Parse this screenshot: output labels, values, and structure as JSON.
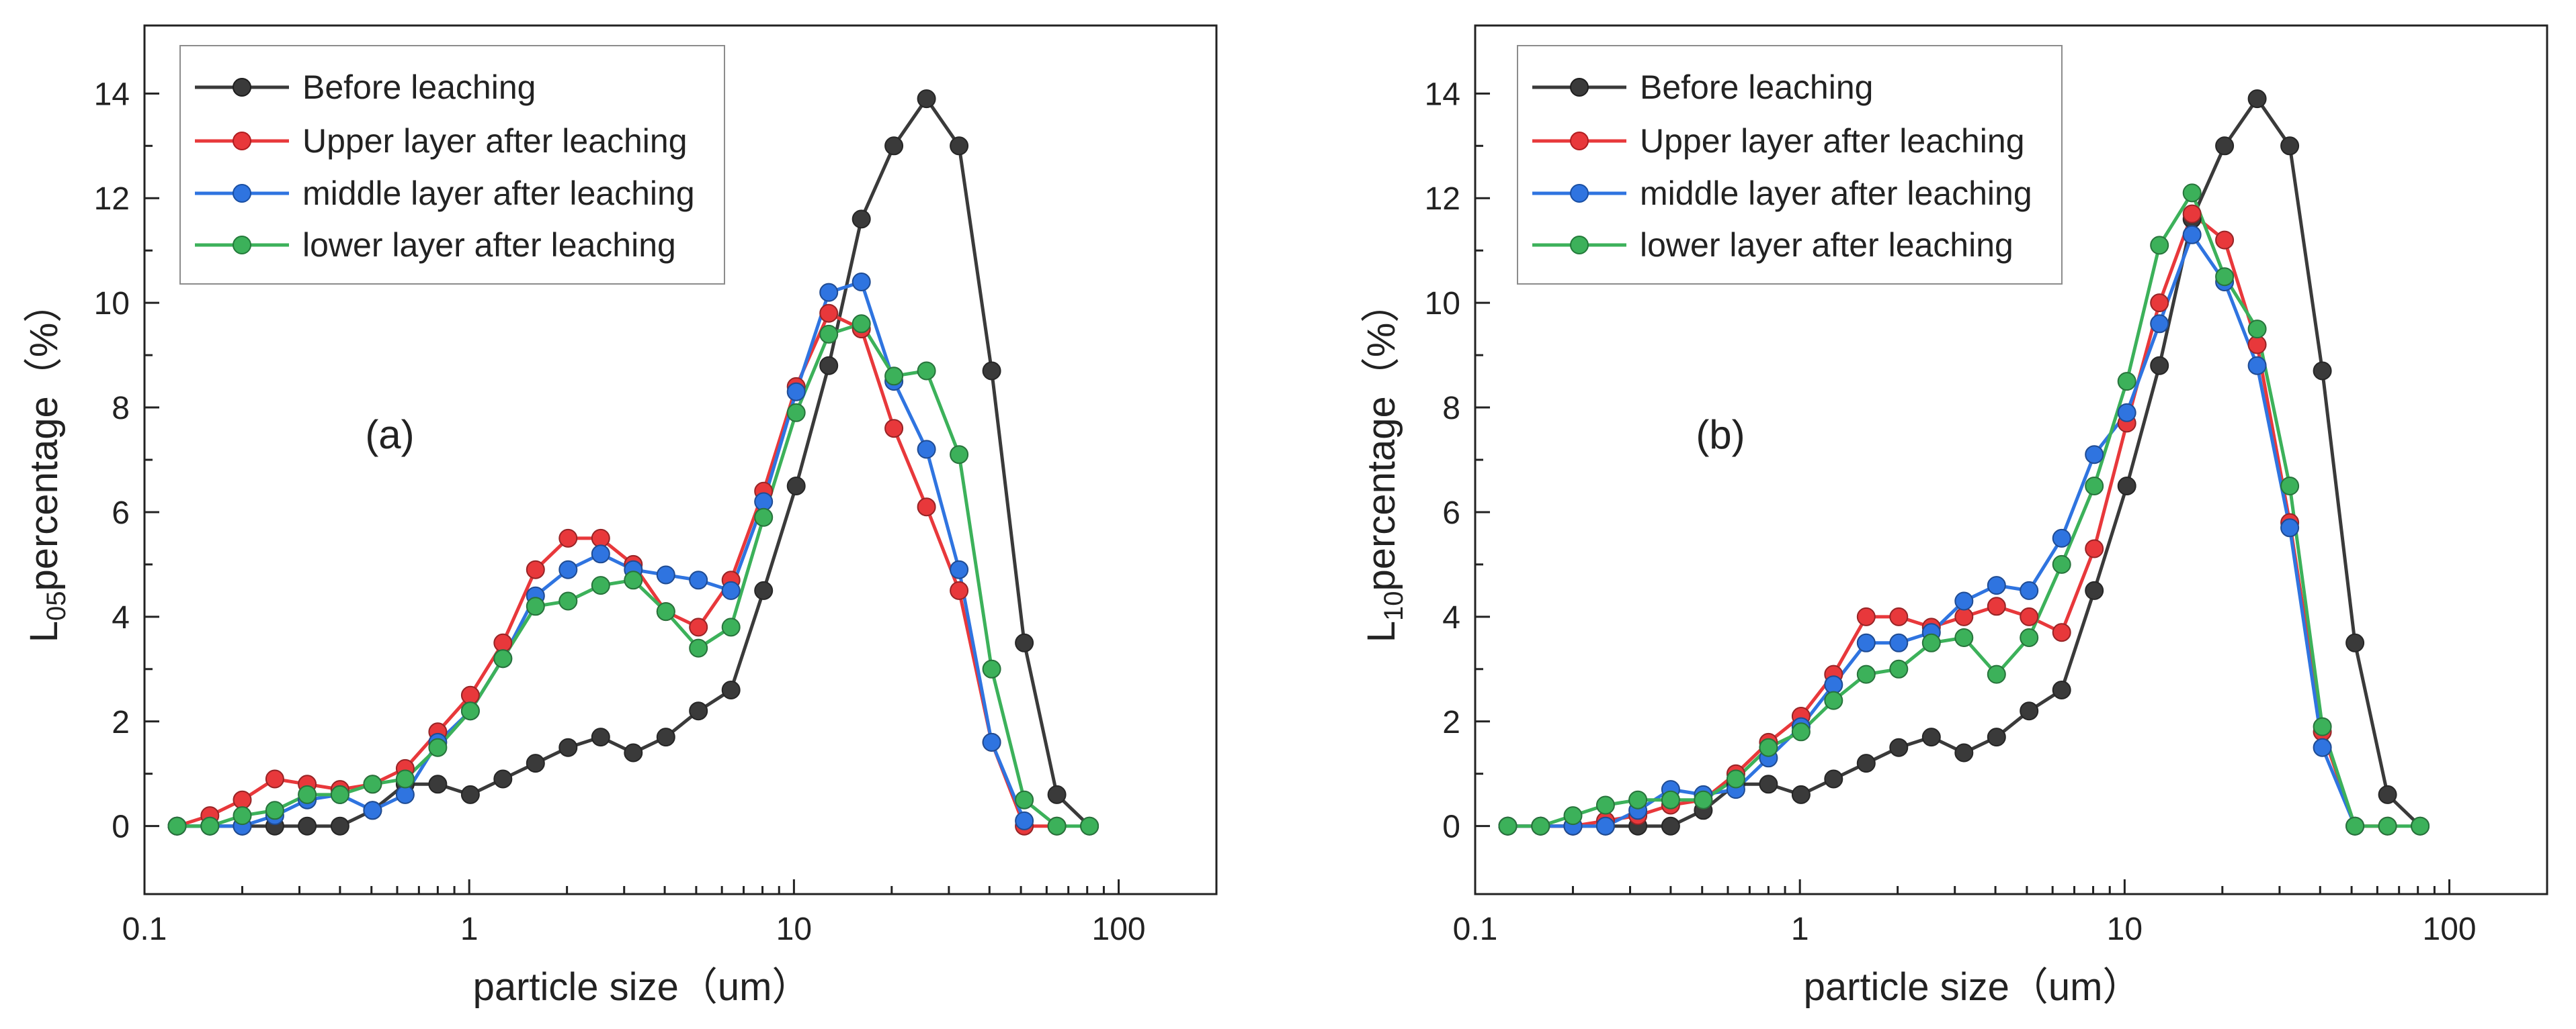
{
  "chart_data": [
    {
      "type": "line",
      "panel_label": "(a)",
      "xlabel": "particle size（um）",
      "ylabel_prefix": "L",
      "ylabel_sub": "05",
      "ylabel_suffix": "percentage（%）",
      "xscale": "log",
      "xlim": [
        0.1,
        200
      ],
      "ylim": [
        -1.3,
        15.3
      ],
      "xticks": [
        0.1,
        1,
        10,
        100
      ],
      "xtick_labels": [
        "0.1",
        "1",
        "10",
        "100"
      ],
      "yticks": [
        0,
        2,
        4,
        6,
        8,
        10,
        12,
        14
      ],
      "ytick_labels": [
        "0",
        "2",
        "4",
        "6",
        "8",
        "10",
        "12",
        "14"
      ],
      "legend_position": "top-left",
      "grid": false,
      "x": [
        0.126,
        0.159,
        0.2,
        0.252,
        0.317,
        0.4,
        0.504,
        0.635,
        0.8,
        1.008,
        1.27,
        1.6,
        2.016,
        2.54,
        3.2,
        4.032,
        5.08,
        6.4,
        8.063,
        10.16,
        12.8,
        16.13,
        20.32,
        25.6,
        32.25,
        40.64,
        51.2,
        64.51,
        81.28,
        102.4
      ],
      "series": [
        {
          "name": "Before leaching",
          "color": "#3a3a3a",
          "values": [
            0,
            0,
            0,
            0,
            0,
            0,
            0.3,
            0.8,
            0.8,
            0.6,
            0.9,
            1.2,
            1.5,
            1.7,
            1.4,
            1.7,
            2.2,
            2.6,
            4.5,
            6.5,
            8.8,
            11.6,
            13.0,
            13.9,
            13.0,
            8.7,
            3.5,
            0.6,
            0,
            null
          ]
        },
        {
          "name": "Upper layer after leaching",
          "color": "#e8383b",
          "values": [
            0,
            0.2,
            0.5,
            0.9,
            0.8,
            0.7,
            0.8,
            1.1,
            1.8,
            2.5,
            3.5,
            4.9,
            5.5,
            5.5,
            5.0,
            4.1,
            3.8,
            4.7,
            6.4,
            8.4,
            9.8,
            9.5,
            7.6,
            6.1,
            4.5,
            1.6,
            0,
            0,
            null,
            null
          ]
        },
        {
          "name": "middle layer after leaching",
          "color": "#2f74e0",
          "values": [
            0,
            0,
            0,
            0.2,
            0.5,
            0.6,
            0.3,
            0.6,
            1.6,
            2.2,
            3.2,
            4.4,
            4.9,
            5.2,
            4.9,
            4.8,
            4.7,
            4.5,
            6.2,
            8.3,
            10.2,
            10.4,
            8.5,
            7.2,
            4.9,
            1.6,
            0.1,
            null,
            null,
            null
          ]
        },
        {
          "name": "lower layer after leaching",
          "color": "#3cb15a",
          "values": [
            0,
            0,
            0.2,
            0.3,
            0.6,
            0.6,
            0.8,
            0.9,
            1.5,
            2.2,
            3.2,
            4.2,
            4.3,
            4.6,
            4.7,
            4.1,
            3.4,
            3.8,
            5.9,
            7.9,
            9.4,
            9.6,
            8.6,
            8.7,
            7.1,
            3.0,
            0.5,
            0,
            0,
            null
          ]
        }
      ]
    },
    {
      "type": "line",
      "panel_label": "(b)",
      "xlabel": "particle size（um）",
      "ylabel_prefix": "L",
      "ylabel_sub": "10",
      "ylabel_suffix": "percentage（%）",
      "xscale": "log",
      "xlim": [
        0.1,
        200
      ],
      "ylim": [
        -1.3,
        15.3
      ],
      "xticks": [
        0.1,
        1,
        10,
        100
      ],
      "xtick_labels": [
        "0.1",
        "1",
        "10",
        "100"
      ],
      "yticks": [
        0,
        2,
        4,
        6,
        8,
        10,
        12,
        14
      ],
      "ytick_labels": [
        "0",
        "2",
        "4",
        "6",
        "8",
        "10",
        "12",
        "14"
      ],
      "legend_position": "top-left",
      "grid": false,
      "x": [
        0.126,
        0.159,
        0.2,
        0.252,
        0.317,
        0.4,
        0.504,
        0.635,
        0.8,
        1.008,
        1.27,
        1.6,
        2.016,
        2.54,
        3.2,
        4.032,
        5.08,
        6.4,
        8.063,
        10.16,
        12.8,
        16.13,
        20.32,
        25.6,
        32.25,
        40.64,
        51.2,
        64.51,
        81.28,
        102.4
      ],
      "series": [
        {
          "name": "Before leaching",
          "color": "#3a3a3a",
          "values": [
            0,
            0,
            0,
            0,
            0,
            0,
            0.3,
            0.8,
            0.8,
            0.6,
            0.9,
            1.2,
            1.5,
            1.7,
            1.4,
            1.7,
            2.2,
            2.6,
            4.5,
            6.5,
            8.8,
            11.6,
            13.0,
            13.9,
            13.0,
            8.7,
            3.5,
            0.6,
            0,
            null
          ]
        },
        {
          "name": "Upper layer after leaching",
          "color": "#e8383b",
          "values": [
            0,
            0,
            0,
            0.1,
            0.2,
            0.4,
            0.5,
            1.0,
            1.6,
            2.1,
            2.9,
            4.0,
            4.0,
            3.8,
            4.0,
            4.2,
            4.0,
            3.7,
            5.3,
            7.7,
            10.0,
            11.7,
            11.2,
            9.2,
            5.8,
            1.8,
            0,
            0,
            null,
            null
          ]
        },
        {
          "name": "middle layer after leaching",
          "color": "#2f74e0",
          "values": [
            0,
            0,
            0,
            0,
            0.3,
            0.7,
            0.6,
            0.7,
            1.3,
            1.9,
            2.7,
            3.5,
            3.5,
            3.7,
            4.3,
            4.6,
            4.5,
            5.5,
            7.1,
            7.9,
            9.6,
            11.3,
            10.4,
            8.8,
            5.7,
            1.5,
            0,
            null,
            null,
            null
          ]
        },
        {
          "name": "lower layer after leaching",
          "color": "#3cb15a",
          "values": [
            0,
            0,
            0.2,
            0.4,
            0.5,
            0.5,
            0.5,
            0.9,
            1.5,
            1.8,
            2.4,
            2.9,
            3.0,
            3.5,
            3.6,
            2.9,
            3.6,
            5.0,
            6.5,
            8.5,
            11.1,
            12.1,
            10.5,
            9.5,
            6.5,
            1.9,
            0,
            0,
            0,
            null
          ]
        }
      ]
    }
  ]
}
